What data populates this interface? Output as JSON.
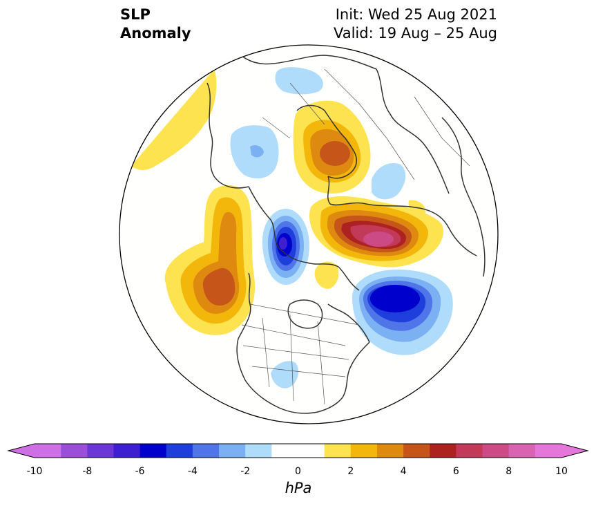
{
  "title": {
    "left_line1": "SLP",
    "left_line2": "Anomaly",
    "right_line1": "Init: Wed 25 Aug 2021",
    "right_line2": "Valid: 19 Aug – 25 Aug"
  },
  "colorbar": {
    "unit": "hPa",
    "ticks": [
      "-10",
      "-8",
      "-6",
      "-4",
      "-2",
      "0",
      "2",
      "4",
      "6",
      "8",
      "10"
    ],
    "range": [
      -10,
      10
    ],
    "step": 1,
    "colors": [
      "#cf6fe6",
      "#9b4fd8",
      "#6b37d6",
      "#3f1fd2",
      "#0000cc",
      "#1f3fdc",
      "#4f75e8",
      "#7bb0f2",
      "#b0dcfb",
      "#ffffff",
      "#ffffff",
      "#fde34f",
      "#f3b70b",
      "#de8a11",
      "#c65519",
      "#ae2121",
      "#c23a58",
      "#cc4b86",
      "#d863b0",
      "#e677da"
    ],
    "extend": "both"
  },
  "map": {
    "projection": "north-polar-stereographic",
    "field": "sea level pressure anomaly",
    "anomalies": [
      {
        "name": "pacific-high",
        "sign": "positive",
        "peak_hpa": 5
      },
      {
        "name": "alaska-high",
        "sign": "positive",
        "peak_hpa": 3
      },
      {
        "name": "beaufort-low",
        "sign": "negative",
        "peak_hpa": -6
      },
      {
        "name": "scandinavia-high",
        "sign": "positive",
        "peak_hpa": 5
      },
      {
        "name": "siberia-high",
        "sign": "positive",
        "peak_hpa": 8
      },
      {
        "name": "greenland-low",
        "sign": "negative",
        "peak_hpa": -6
      },
      {
        "name": "mediterranean-low",
        "sign": "negative",
        "peak_hpa": -2
      },
      {
        "name": "east-asia-low",
        "sign": "negative",
        "peak_hpa": -2
      },
      {
        "name": "usa-low",
        "sign": "negative",
        "peak_hpa": -2
      },
      {
        "name": "north-africa-high",
        "sign": "positive",
        "peak_hpa": 2
      }
    ]
  }
}
